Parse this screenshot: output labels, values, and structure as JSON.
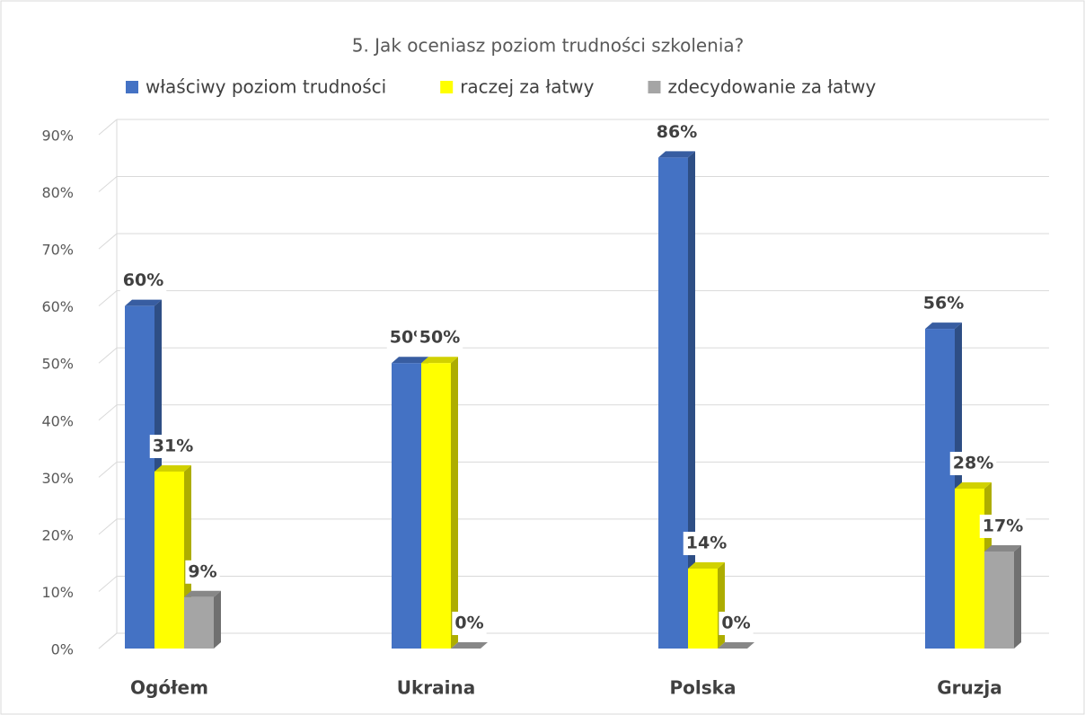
{
  "chart_data": {
    "type": "bar3d",
    "title": "5. Jak oceniasz poziom trudności szkolenia?",
    "categories": [
      "Ogółem",
      "Ukraina",
      "Polska",
      "Gruzja"
    ],
    "series": [
      {
        "name": "właściwy poziom trudności",
        "color": "#4472c4",
        "values": [
          60,
          50,
          86,
          56
        ],
        "value_labels": [
          "60%",
          "50%",
          "86%",
          "56%"
        ]
      },
      {
        "name": "raczej za łatwy",
        "color": "#ffff00",
        "values": [
          31,
          50,
          14,
          28
        ],
        "value_labels": [
          "31%",
          "50%",
          "14%",
          "28%"
        ]
      },
      {
        "name": "zdecydowanie za łatwy",
        "color": "#a5a5a5",
        "values": [
          9,
          0,
          0,
          17
        ],
        "value_labels": [
          "9%",
          "0%",
          "0%",
          "17%"
        ]
      }
    ],
    "ylim": [
      0,
      90
    ],
    "yticks": [
      {
        "value": 0,
        "label": "0%"
      },
      {
        "value": 10,
        "label": "10%"
      },
      {
        "value": 20,
        "label": "20%"
      },
      {
        "value": 30,
        "label": "30%"
      },
      {
        "value": 40,
        "label": "40%"
      },
      {
        "value": 50,
        "label": "50%"
      },
      {
        "value": 60,
        "label": "60%"
      },
      {
        "value": 70,
        "label": "70%"
      },
      {
        "value": 80,
        "label": "80%"
      },
      {
        "value": 90,
        "label": "90%"
      }
    ],
    "grid": true,
    "legend": "top"
  }
}
